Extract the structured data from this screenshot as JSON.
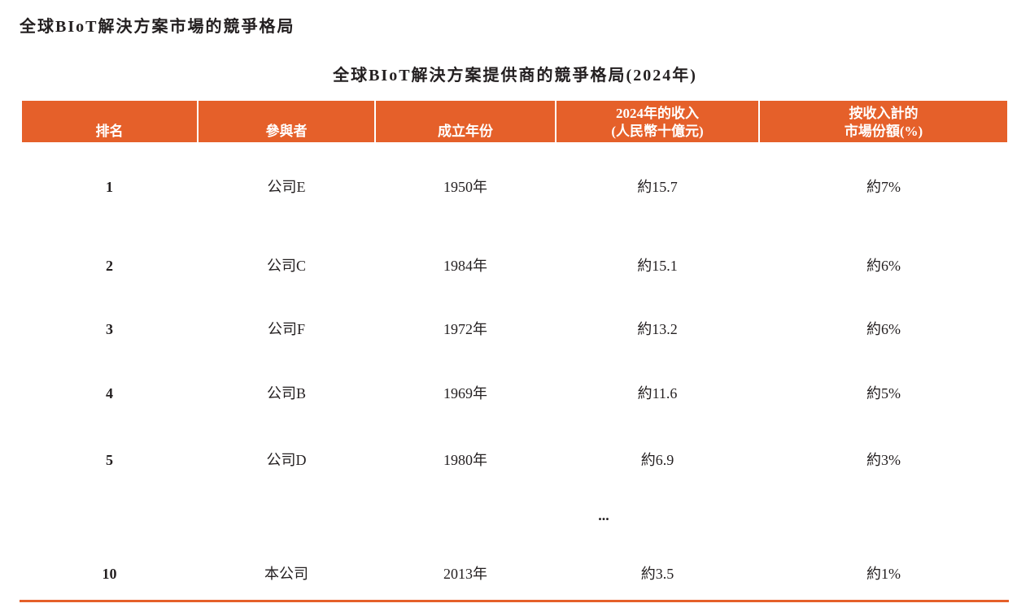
{
  "heading": "全球BIoT解決方案市場的競爭格局",
  "table": {
    "title": "全球BIoT解決方案提供商的競爭格局(2024年)",
    "header_color": "#E5602A",
    "columns": [
      {
        "line1": "",
        "line2": "排名"
      },
      {
        "line1": "",
        "line2": "參與者"
      },
      {
        "line1": "",
        "line2": "成立年份"
      },
      {
        "line1": "2024年的收入",
        "line2": "(人民幣十億元)"
      },
      {
        "line1": "按收入計的",
        "line2": "市場份額(%)"
      }
    ],
    "rows": [
      {
        "rank": "1",
        "participant": "公司E",
        "founded": "1950年",
        "revenue": "約15.7",
        "share": "約7%"
      },
      {
        "rank": "2",
        "participant": "公司C",
        "founded": "1984年",
        "revenue": "約15.1",
        "share": "約6%"
      },
      {
        "rank": "3",
        "participant": "公司F",
        "founded": "1972年",
        "revenue": "約13.2",
        "share": "約6%"
      },
      {
        "rank": "4",
        "participant": "公司B",
        "founded": "1969年",
        "revenue": "約11.6",
        "share": "約5%"
      },
      {
        "rank": "5",
        "participant": "公司D",
        "founded": "1980年",
        "revenue": "約6.9",
        "share": "約3%"
      },
      {
        "rank": "10",
        "participant": "本公司",
        "founded": "2013年",
        "revenue": "約3.5",
        "share": "約1%"
      }
    ],
    "ellipsis": "..."
  }
}
